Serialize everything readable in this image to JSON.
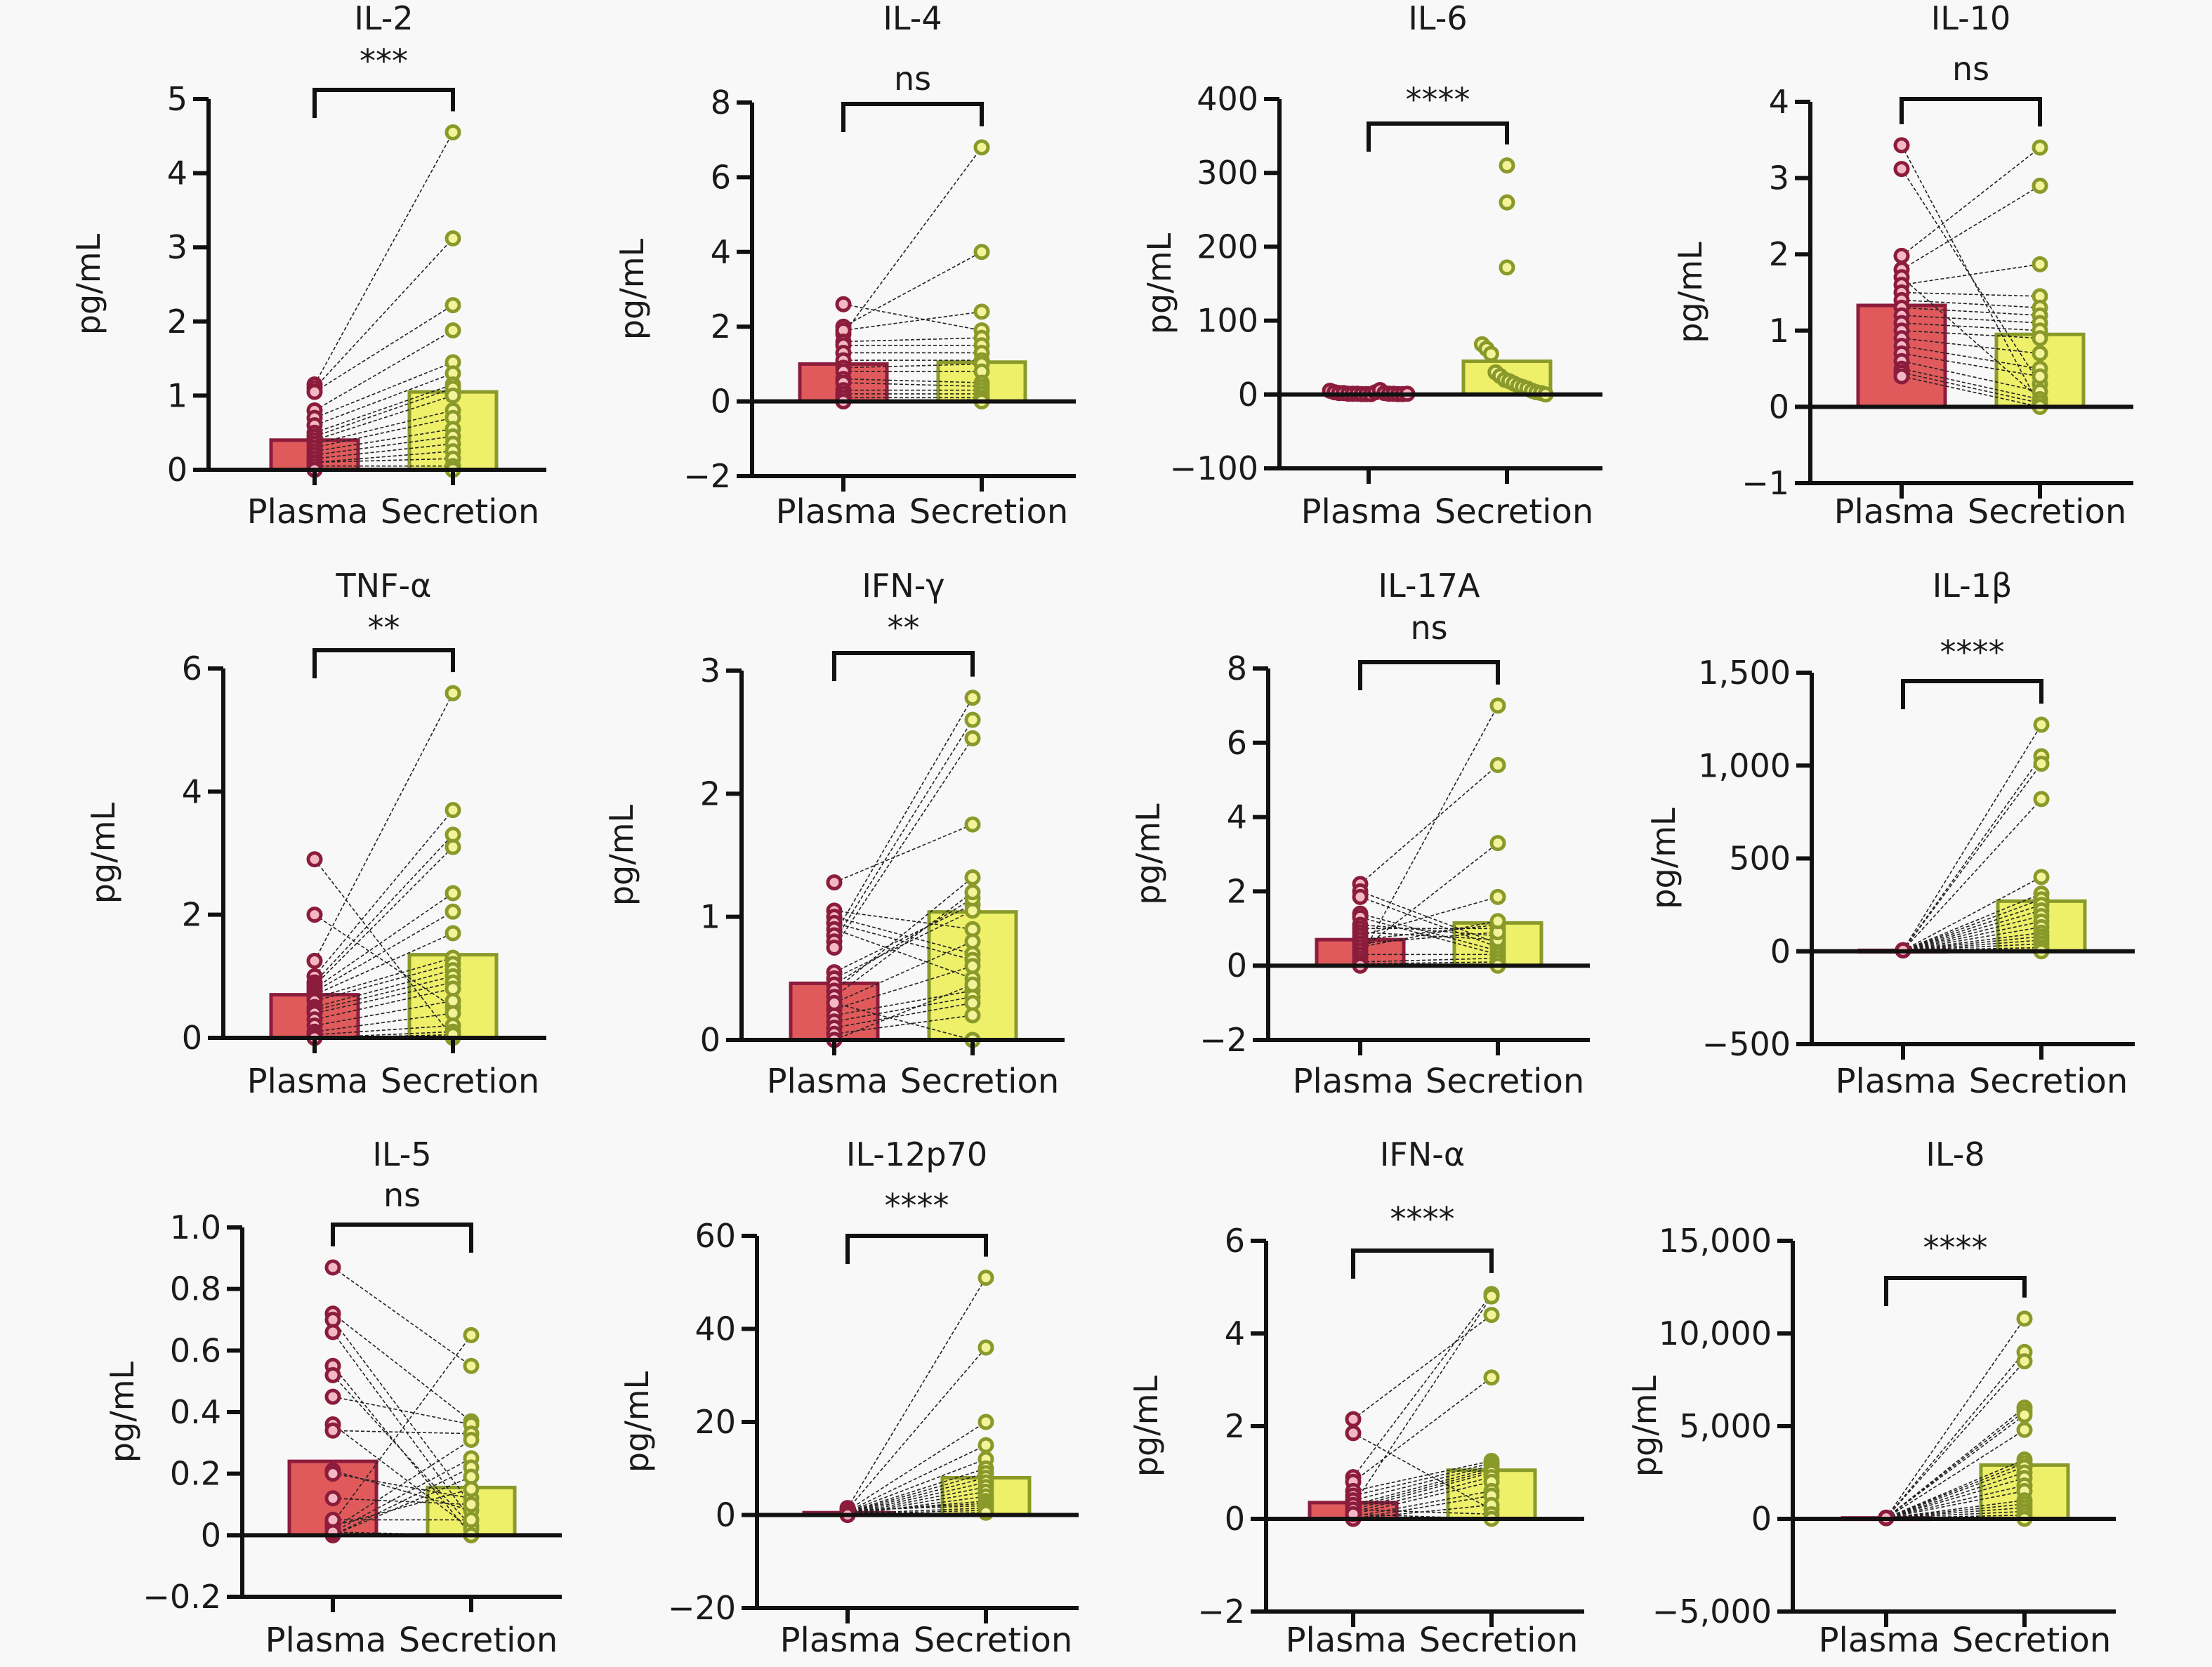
{
  "figure": {
    "background": "#f8f8f8",
    "colors": {
      "plasma_fill": "#e05a5c",
      "plasma_stroke": "#8b1c3c",
      "secretion_fill": "#eef06a",
      "secretion_stroke": "#8a9a2a",
      "pair_line": "#222222",
      "axis": "#111111"
    },
    "layout": "3x4 grid"
  },
  "chart_data": [
    {
      "type": "bar",
      "title": "IL-2",
      "ylabel": "pg/mL",
      "xlabel": "",
      "categories": [
        "Plasma",
        "Secretion"
      ],
      "ylim": [
        0,
        5
      ],
      "yticks": [
        0,
        1,
        2,
        3,
        4,
        5
      ],
      "ytick_labels": [
        "0",
        "1",
        "2",
        "3",
        "4",
        "5"
      ],
      "significance": "***",
      "paired": true,
      "series": [
        {
          "name": "Plasma",
          "mean": 0.4,
          "points": [
            1.15,
            1.1,
            1.05,
            0.8,
            0.7,
            0.6,
            0.5,
            0.45,
            0.4,
            0.35,
            0.3,
            0.25,
            0.2,
            0.15,
            0.1,
            0.1,
            0.05,
            0.0,
            0.0,
            0.0
          ]
        },
        {
          "name": "Secretion",
          "mean": 1.05,
          "points": [
            4.55,
            3.12,
            2.22,
            1.88,
            1.45,
            1.3,
            1.15,
            1.1,
            1.0,
            0.8,
            0.7,
            0.55,
            0.45,
            0.35,
            0.25,
            0.15,
            0.05,
            0.0,
            0.0,
            0.0
          ]
        }
      ]
    },
    {
      "type": "bar",
      "title": "IL-4",
      "ylabel": "pg/mL",
      "xlabel": "",
      "categories": [
        "Plasma",
        "Secretion"
      ],
      "ylim": [
        -2,
        8
      ],
      "yticks": [
        -2,
        0,
        2,
        4,
        6,
        8
      ],
      "ytick_labels": [
        "−2",
        "0",
        "2",
        "4",
        "6",
        "8"
      ],
      "significance": "ns",
      "paired": true,
      "series": [
        {
          "name": "Plasma",
          "mean": 1.0,
          "points": [
            1.8,
            2.0,
            1.9,
            2.6,
            1.6,
            1.5,
            1.3,
            1.1,
            0.9,
            0.8,
            0.6,
            0.5,
            0.3,
            0.2,
            0.1,
            0.0,
            0.0
          ]
        },
        {
          "name": "Secretion",
          "mean": 1.05,
          "points": [
            6.8,
            4.0,
            2.4,
            1.9,
            1.7,
            1.5,
            1.3,
            1.1,
            1.0,
            0.8,
            0.5,
            0.4,
            0.3,
            0.2,
            0.1,
            0.05,
            0.0
          ]
        }
      ]
    },
    {
      "type": "bar",
      "title": "IL-6",
      "ylabel": "pg/mL",
      "xlabel": "",
      "categories": [
        "Plasma",
        "Secretion"
      ],
      "ylim": [
        -100,
        400
      ],
      "yticks": [
        -100,
        0,
        100,
        200,
        300,
        400
      ],
      "ytick_labels": [
        "−100",
        "0",
        "100",
        "200",
        "300",
        "400"
      ],
      "significance": "****",
      "paired": false,
      "series": [
        {
          "name": "Plasma",
          "mean": 2,
          "points": [
            5,
            3,
            2,
            2,
            1,
            1,
            1,
            0.5,
            0.5,
            0.5,
            3,
            6,
            2,
            1,
            1,
            0.5,
            0.5,
            1
          ]
        },
        {
          "name": "Secretion",
          "mean": 45,
          "points": [
            310,
            260,
            172,
            68,
            62,
            55,
            30,
            25,
            20,
            18,
            15,
            12,
            10,
            8,
            5,
            3,
            2,
            0
          ]
        }
      ]
    },
    {
      "type": "bar",
      "title": "IL-10",
      "ylabel": "pg/mL",
      "xlabel": "",
      "categories": [
        "Plasma",
        "Secretion"
      ],
      "ylim": [
        -1,
        4
      ],
      "yticks": [
        -1,
        0,
        1,
        2,
        3,
        4
      ],
      "ytick_labels": [
        "−1",
        "0",
        "1",
        "2",
        "3",
        "4"
      ],
      "significance": "ns",
      "paired": true,
      "series": [
        {
          "name": "Plasma",
          "mean": 1.33,
          "points": [
            3.43,
            3.12,
            1.98,
            1.8,
            1.7,
            1.6,
            1.5,
            1.4,
            1.3,
            1.2,
            1.1,
            1.0,
            0.9,
            0.8,
            0.7,
            0.6,
            0.5,
            0.45,
            0.4
          ]
        },
        {
          "name": "Secretion",
          "mean": 0.95,
          "points": [
            0.0,
            0.3,
            3.4,
            2.9,
            0.1,
            1.87,
            1.45,
            1.3,
            1.2,
            1.1,
            1.0,
            0.9,
            0.7,
            0.5,
            0.4,
            0.2,
            0.1,
            0.05,
            0.0
          ]
        }
      ]
    },
    {
      "type": "bar",
      "title": "TNF-α",
      "ylabel": "pg/mL",
      "xlabel": "",
      "categories": [
        "Plasma",
        "Secretion"
      ],
      "ylim": [
        0,
        6
      ],
      "yticks": [
        0,
        2,
        4,
        6
      ],
      "ytick_labels": [
        "0",
        "2",
        "4",
        "6"
      ],
      "significance": "**",
      "paired": true,
      "series": [
        {
          "name": "Plasma",
          "mean": 0.7,
          "points": [
            2.9,
            2.0,
            1.25,
            1.0,
            0.9,
            0.85,
            0.8,
            0.75,
            0.7,
            0.65,
            0.6,
            0.5,
            0.45,
            0.4,
            0.3,
            0.2,
            0.1,
            0.05,
            0.0,
            0.0
          ]
        },
        {
          "name": "Secretion",
          "mean": 1.35,
          "points": [
            0.0,
            0.5,
            5.6,
            3.7,
            3.3,
            3.1,
            2.35,
            2.05,
            1.7,
            1.3,
            1.2,
            1.1,
            1.0,
            0.9,
            0.8,
            0.6,
            0.4,
            0.2,
            0.1,
            0.05
          ]
        }
      ]
    },
    {
      "type": "bar",
      "title": "IFN-γ",
      "ylabel": "pg/mL",
      "xlabel": "",
      "categories": [
        "Plasma",
        "Secretion"
      ],
      "ylim": [
        0,
        3
      ],
      "yticks": [
        0,
        1,
        2,
        3
      ],
      "ytick_labels": [
        "0",
        "1",
        "2",
        "3"
      ],
      "significance": "**",
      "paired": true,
      "series": [
        {
          "name": "Plasma",
          "mean": 0.46,
          "points": [
            1.28,
            1.05,
            1.0,
            0.95,
            0.9,
            0.85,
            0.8,
            0.75,
            0.55,
            0.5,
            0.45,
            0.4,
            0.35,
            0.3,
            0.25,
            0.2,
            0.15,
            0.1,
            0.05,
            0.0,
            0.0,
            0.3
          ]
        },
        {
          "name": "Secretion",
          "mean": 1.04,
          "points": [
            1.75,
            0.9,
            0.7,
            0.65,
            0.5,
            2.78,
            2.6,
            2.45,
            1.1,
            1.05,
            1.15,
            1.32,
            1.2,
            0.8,
            0.6,
            0.4,
            0.35,
            0.3,
            0.2,
            0.0,
            0.45,
            0.0
          ]
        }
      ]
    },
    {
      "type": "bar",
      "title": "IL-17A",
      "ylabel": "pg/mL",
      "xlabel": "",
      "categories": [
        "Plasma",
        "Secretion"
      ],
      "ylim": [
        -2,
        8
      ],
      "yticks": [
        -2,
        0,
        2,
        4,
        6,
        8
      ],
      "ytick_labels": [
        "−2",
        "0",
        "2",
        "4",
        "6",
        "8"
      ],
      "significance": "ns",
      "paired": true,
      "series": [
        {
          "name": "Plasma",
          "mean": 0.7,
          "points": [
            2.2,
            2.0,
            1.85,
            1.4,
            1.3,
            1.1,
            1.0,
            0.9,
            0.8,
            0.7,
            0.6,
            0.5,
            0.4,
            0.3,
            0.2,
            0.1,
            0.05,
            0.0
          ]
        },
        {
          "name": "Secretion",
          "mean": 1.15,
          "points": [
            5.4,
            0.6,
            0.5,
            0.4,
            0.3,
            0.8,
            1.0,
            0.7,
            1.85,
            1.1,
            0.9,
            1.2,
            3.3,
            0.3,
            7.0,
            0.2,
            0.1,
            0.0
          ]
        }
      ]
    },
    {
      "type": "bar",
      "title": "IL-1β",
      "ylabel": "pg/mL",
      "xlabel": "",
      "categories": [
        "Plasma",
        "Secretion"
      ],
      "ylim": [
        -500,
        1500
      ],
      "yticks": [
        -500,
        0,
        500,
        1000,
        1500
      ],
      "ytick_labels": [
        "−500",
        "0",
        "500",
        "1,000",
        "1,500"
      ],
      "significance": "****",
      "paired": true,
      "series": [
        {
          "name": "Plasma",
          "mean": 5,
          "points": [
            5,
            5,
            5,
            5,
            5,
            5,
            5,
            5,
            5,
            5,
            5,
            5,
            5,
            5,
            5,
            5,
            5,
            5,
            5
          ]
        },
        {
          "name": "Secretion",
          "mean": 270,
          "points": [
            1220,
            1050,
            1010,
            820,
            400,
            310,
            280,
            250,
            220,
            190,
            160,
            130,
            100,
            80,
            60,
            40,
            20,
            10,
            0
          ]
        }
      ]
    },
    {
      "type": "bar",
      "title": "IL-5",
      "ylabel": "pg/mL",
      "xlabel": "",
      "categories": [
        "Plasma",
        "Secretion"
      ],
      "ylim": [
        -0.2,
        1.0
      ],
      "yticks": [
        -0.2,
        0,
        0.2,
        0.4,
        0.6,
        0.8,
        1.0
      ],
      "ytick_labels": [
        "−0.2",
        "0",
        "0.2",
        "0.4",
        "0.6",
        "0.8",
        "1.0"
      ],
      "significance": "ns",
      "paired": true,
      "series": [
        {
          "name": "Plasma",
          "mean": 0.24,
          "points": [
            0.87,
            0.72,
            0.7,
            0.66,
            0.55,
            0.52,
            0.45,
            0.36,
            0.34,
            0.21,
            0.2,
            0.12,
            0.04,
            0.02,
            0.01,
            0.0,
            0.0,
            0.03,
            0.05,
            0.01
          ]
        },
        {
          "name": "Secretion",
          "mean": 0.155,
          "points": [
            0.55,
            0.37,
            0.1,
            0.05,
            0.0,
            0.03,
            0.36,
            0.02,
            0.33,
            0.08,
            0.12,
            0.1,
            0.65,
            0.31,
            0.25,
            0.22,
            0.19,
            0.15,
            0.05,
            0.0
          ]
        }
      ]
    },
    {
      "type": "bar",
      "title": "IL-12p70",
      "ylabel": "pg/mL",
      "xlabel": "",
      "categories": [
        "Plasma",
        "Secretion"
      ],
      "ylim": [
        -20,
        60
      ],
      "yticks": [
        -20,
        0,
        20,
        40,
        60
      ],
      "ytick_labels": [
        "−20",
        "0",
        "20",
        "40",
        "60"
      ],
      "significance": "****",
      "paired": true,
      "series": [
        {
          "name": "Plasma",
          "mean": 0.5,
          "points": [
            1.5,
            1.2,
            1.0,
            0.8,
            0.7,
            0.6,
            0.5,
            0.4,
            0.3,
            0.2,
            0.1,
            0.0,
            0.5,
            0.8,
            1.0,
            0.3,
            0.2,
            0.0
          ]
        },
        {
          "name": "Secretion",
          "mean": 8,
          "points": [
            51,
            36,
            20,
            15,
            12,
            10,
            9,
            8,
            7,
            6,
            5,
            4,
            3,
            2.5,
            2,
            1.5,
            1,
            0.5
          ]
        }
      ]
    },
    {
      "type": "bar",
      "title": "IFN-α",
      "ylabel": "pg/mL",
      "xlabel": "",
      "categories": [
        "Plasma",
        "Secretion"
      ],
      "ylim": [
        -2,
        6
      ],
      "yticks": [
        -2,
        0,
        2,
        4,
        6
      ],
      "ytick_labels": [
        "−2",
        "0",
        "2",
        "4",
        "6"
      ],
      "significance": "****",
      "paired": true,
      "series": [
        {
          "name": "Plasma",
          "mean": 0.35,
          "points": [
            2.15,
            1.85,
            0.9,
            0.8,
            0.6,
            0.5,
            0.4,
            0.3,
            0.25,
            0.2,
            0.15,
            0.1,
            0.05,
            0.0,
            0.0,
            0.3,
            0.2,
            0.1
          ]
        },
        {
          "name": "Secretion",
          "mean": 1.05,
          "points": [
            4.4,
            0.2,
            4.85,
            3.05,
            1.25,
            1.2,
            1.15,
            1.1,
            1.05,
            1.0,
            0.9,
            0.8,
            0.6,
            0.5,
            0.3,
            4.8,
            0.1,
            0.0
          ]
        }
      ]
    },
    {
      "type": "bar",
      "title": "IL-8",
      "ylabel": "pg/mL",
      "xlabel": "",
      "categories": [
        "Plasma",
        "Secretion"
      ],
      "ylim": [
        -5000,
        15000
      ],
      "yticks": [
        -5000,
        0,
        5000,
        10000,
        15000
      ],
      "ytick_labels": [
        "−5,000",
        "0",
        "5,000",
        "10,000",
        "15,000"
      ],
      "significance": "****",
      "paired": true,
      "series": [
        {
          "name": "Plasma",
          "mean": 50,
          "points": [
            60,
            50,
            50,
            40,
            60,
            50,
            40,
            50,
            60,
            50,
            40,
            50,
            60,
            50,
            40,
            50,
            60,
            50,
            40,
            50
          ]
        },
        {
          "name": "Secretion",
          "mean": 2900,
          "points": [
            10800,
            9000,
            8500,
            6000,
            5800,
            5600,
            4800,
            3200,
            3000,
            2800,
            2500,
            2200,
            1800,
            1500,
            1000,
            800,
            600,
            400,
            200,
            0
          ]
        }
      ]
    }
  ]
}
